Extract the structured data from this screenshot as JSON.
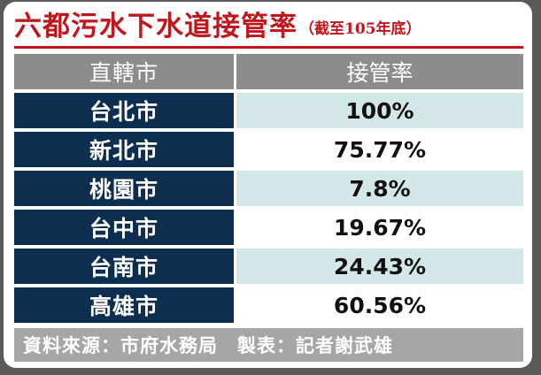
{
  "title": {
    "main": "六都污水下水道接管率",
    "sub": "（截至105年底）"
  },
  "table": {
    "header": {
      "city": "直轄市",
      "rate": "接管率"
    },
    "rows": [
      {
        "city": "台北市",
        "rate": "100%"
      },
      {
        "city": "新北市",
        "rate": "75.77%"
      },
      {
        "city": "桃園市",
        "rate": "7.8%"
      },
      {
        "city": "台中市",
        "rate": "19.67%"
      },
      {
        "city": "台南市",
        "rate": "24.43%"
      },
      {
        "city": "高雄市",
        "rate": "60.56%"
      }
    ]
  },
  "footer": {
    "text": "資料來源：市府水務局　製表：記者謝武雄"
  },
  "colors": {
    "title_red": "#c0161d",
    "city_navy": "#0e2e4f",
    "rate_tint": "#d3e6e8",
    "header_gray": "#8c8c8c",
    "footer_gray": "#a6a6a6"
  }
}
